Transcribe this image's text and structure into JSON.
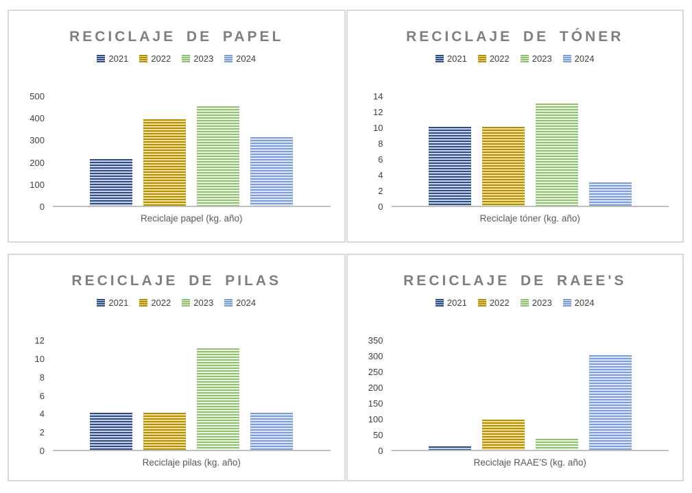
{
  "page": {
    "background": "#ffffff"
  },
  "colors": {
    "panel_border": "#d9d9d9",
    "title_text": "#7f7f7f",
    "tick_text": "#404040",
    "legend_text": "#404040",
    "xlabel_text": "#595959",
    "axis_line": "#bfbfbf",
    "series": {
      "2021": {
        "dark": "#2e4c7e",
        "light": "#c7d3ec"
      },
      "2022": {
        "dark": "#b08f00",
        "light": "#f3df9f"
      },
      "2023": {
        "dark": "#8fbf6f",
        "light": "#eaf3e1"
      },
      "2024": {
        "dark": "#7c9cd4",
        "light": "#dce6f6"
      }
    }
  },
  "chart_data": [
    {
      "type": "bar",
      "title": "RECICLAJE DE PAPEL",
      "categories": [
        "2021",
        "2022",
        "2023",
        "2024"
      ],
      "values": [
        210,
        390,
        450,
        310
      ],
      "xlabel": "Reciclaje papel (kg. año)",
      "ylabel": "",
      "ylim": [
        0,
        500
      ],
      "yticks": [
        0,
        100,
        200,
        300,
        400,
        500
      ],
      "legend_position": "top",
      "grid": false
    },
    {
      "type": "bar",
      "title": "RECICLAJE DE TÓNER",
      "categories": [
        "2021",
        "2022",
        "2023",
        "2024"
      ],
      "values": [
        10,
        10,
        13,
        3
      ],
      "xlabel": "Reciclaje tóner (kg. año)",
      "ylabel": "",
      "ylim": [
        0,
        14
      ],
      "yticks": [
        0,
        2,
        4,
        6,
        8,
        10,
        12,
        14
      ],
      "legend_position": "top",
      "grid": false
    },
    {
      "type": "bar",
      "title": "RECICLAJE DE PILAS",
      "categories": [
        "2021",
        "2022",
        "2023",
        "2024"
      ],
      "values": [
        4,
        4,
        11,
        4
      ],
      "xlabel": "Reciclaje pilas (kg. año)",
      "ylabel": "",
      "ylim": [
        0,
        12
      ],
      "yticks": [
        0,
        2,
        4,
        6,
        8,
        10,
        12
      ],
      "legend_position": "top",
      "grid": false
    },
    {
      "type": "bar",
      "title": "RECICLAJE DE RAEE'S",
      "categories": [
        "2021",
        "2022",
        "2023",
        "2024"
      ],
      "values": [
        10,
        95,
        35,
        300
      ],
      "xlabel": "Reciclaje RAAE’S (kg. año)",
      "ylabel": "",
      "ylim": [
        0,
        350
      ],
      "yticks": [
        0,
        50,
        100,
        150,
        200,
        250,
        300,
        350
      ],
      "legend_position": "top",
      "grid": false
    }
  ]
}
